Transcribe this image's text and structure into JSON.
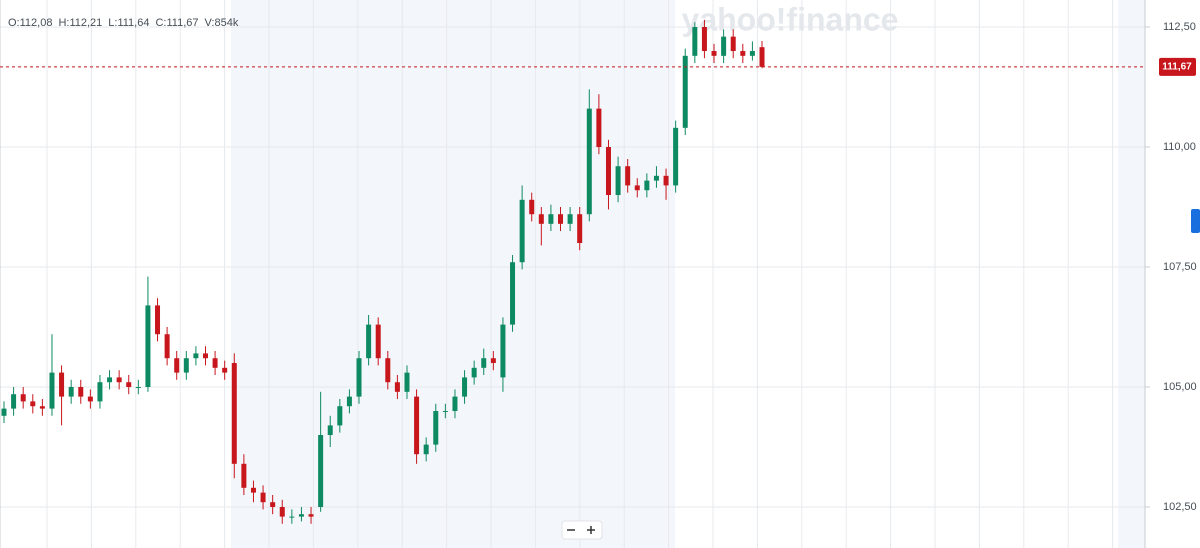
{
  "chart_data": {
    "type": "candlestick",
    "watermark": "yahoo!finance",
    "info": [
      "O:112,08",
      "H:112,21",
      "L:111,64",
      "C:111,67",
      "V:854k"
    ],
    "current_price": {
      "value": 111.67,
      "label": "111,67"
    },
    "ylim": [
      101.646,
      113.063
    ],
    "yticks": [
      {
        "value": 102.5,
        "label": "102,50"
      },
      {
        "value": 105,
        "label": "105,00"
      },
      {
        "value": 107.5,
        "label": "107,50"
      },
      {
        "value": 110,
        "label": "110,00"
      },
      {
        "value": 112.5,
        "label": "112,50"
      }
    ],
    "up_color": "#0e8a62",
    "down_color": "#c8161d",
    "open": [
      104.4,
      104.55,
      104.85,
      104.7,
      104.6,
      104.55,
      105.3,
      104.8,
      105.0,
      104.8,
      104.7,
      105.1,
      105.2,
      105.1,
      105.0,
      105.0,
      106.7,
      106.1,
      105.6,
      105.3,
      105.6,
      105.7,
      105.6,
      105.4,
      105.5,
      103.4,
      102.9,
      102.8,
      102.6,
      102.5,
      102.3,
      102.3,
      102.35,
      102.5,
      104.0,
      104.2,
      104.6,
      104.8,
      105.6,
      106.3,
      105.6,
      105.1,
      104.9,
      104.8,
      103.6,
      103.8,
      104.5,
      104.5,
      104.8,
      105.2,
      105.4,
      105.6,
      105.2,
      106.3,
      107.6,
      108.9,
      108.6,
      108.4,
      108.6,
      108.4,
      108.6,
      108.6,
      110.8,
      110.0,
      109.0,
      109.6,
      109.2,
      109.1,
      109.3,
      109.4,
      109.2,
      110.4,
      111.9,
      112.5,
      112.0,
      111.9,
      112.3,
      112.0,
      111.9,
      112.08
    ],
    "high": [
      104.7,
      105.0,
      105.0,
      104.85,
      104.75,
      106.1,
      105.45,
      105.15,
      105.15,
      104.95,
      105.25,
      105.35,
      105.35,
      105.25,
      105.15,
      107.3,
      106.85,
      106.25,
      105.75,
      105.75,
      105.85,
      105.85,
      105.75,
      105.55,
      105.7,
      103.6,
      103.05,
      102.95,
      102.75,
      102.65,
      102.45,
      102.5,
      102.5,
      104.9,
      104.4,
      104.75,
      104.95,
      105.75,
      106.5,
      106.45,
      105.75,
      105.25,
      105.45,
      104.95,
      103.95,
      104.65,
      104.65,
      104.95,
      105.35,
      105.55,
      105.8,
      105.75,
      106.45,
      107.75,
      109.2,
      109.05,
      108.75,
      108.8,
      108.75,
      108.75,
      108.75,
      111.2,
      111.1,
      110.15,
      109.8,
      109.75,
      109.35,
      109.45,
      109.6,
      109.55,
      110.55,
      112.05,
      112.6,
      112.65,
      112.15,
      112.45,
      112.45,
      112.15,
      112.2,
      112.21
    ],
    "low": [
      104.25,
      104.4,
      104.55,
      104.45,
      104.4,
      104.4,
      104.2,
      104.65,
      104.65,
      104.55,
      104.55,
      104.95,
      104.95,
      104.85,
      104.85,
      104.9,
      105.95,
      105.45,
      105.15,
      105.15,
      105.45,
      105.45,
      105.25,
      105.15,
      103.1,
      102.75,
      102.6,
      102.45,
      102.35,
      102.15,
      102.15,
      102.2,
      102.15,
      102.4,
      103.75,
      104.05,
      104.45,
      104.65,
      105.45,
      105.45,
      104.95,
      104.75,
      104.75,
      103.4,
      103.45,
      103.65,
      104.35,
      104.35,
      104.65,
      105.05,
      105.25,
      105.35,
      104.9,
      106.15,
      107.45,
      108.45,
      107.95,
      108.25,
      108.25,
      108.25,
      107.85,
      108.45,
      109.85,
      108.7,
      108.85,
      109.05,
      108.95,
      108.95,
      109.15,
      108.9,
      109.05,
      110.25,
      111.75,
      111.85,
      111.75,
      111.75,
      111.85,
      111.75,
      111.8,
      111.64
    ],
    "close": [
      104.55,
      104.85,
      104.7,
      104.6,
      104.55,
      105.3,
      104.8,
      105.0,
      104.8,
      104.7,
      105.1,
      105.2,
      105.1,
      105.0,
      105.0,
      106.7,
      106.1,
      105.6,
      105.3,
      105.6,
      105.7,
      105.6,
      105.4,
      105.3,
      103.4,
      102.9,
      102.8,
      102.6,
      102.5,
      102.3,
      102.3,
      102.35,
      102.3,
      104.0,
      104.2,
      104.6,
      104.8,
      105.6,
      106.3,
      105.6,
      105.1,
      104.9,
      105.3,
      103.6,
      103.8,
      104.5,
      104.5,
      104.8,
      105.2,
      105.4,
      105.6,
      105.5,
      106.3,
      107.6,
      108.9,
      108.6,
      108.4,
      108.6,
      108.4,
      108.6,
      108.0,
      110.8,
      110.0,
      109.0,
      109.6,
      109.2,
      109.1,
      109.3,
      109.4,
      109.2,
      110.4,
      111.9,
      112.5,
      112.0,
      111.9,
      112.3,
      112.0,
      111.9,
      112.0,
      111.67
    ]
  }
}
